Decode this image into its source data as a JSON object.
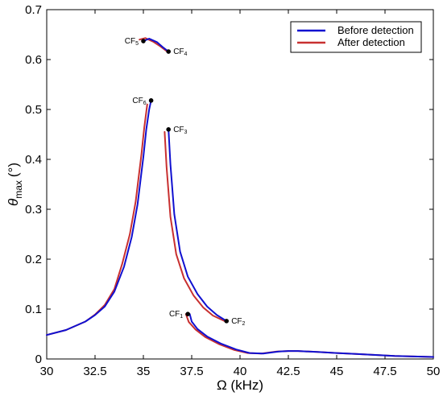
{
  "chart_data": {
    "type": "line",
    "xlabel": "Ω (kHz)",
    "ylabel": {
      "symbol": "θ",
      "subscript": "max",
      "unit": "(°)"
    },
    "xlim": [
      30,
      50
    ],
    "ylim": [
      0,
      0.7
    ],
    "x_ticks": [
      30,
      32.5,
      35,
      37.5,
      40,
      42.5,
      45,
      47.5,
      50
    ],
    "x_tick_labels": [
      "30",
      "32.5",
      "35",
      "37.5",
      "40",
      "42.5",
      "45",
      "47.5",
      "50"
    ],
    "y_ticks": [
      0,
      0.1,
      0.2,
      0.3,
      0.4,
      0.5,
      0.6,
      0.7
    ],
    "y_tick_labels": [
      "0",
      "0.1",
      "0.2",
      "0.3",
      "0.4",
      "0.5",
      "0.6",
      "0.7"
    ],
    "grid": false,
    "legend_position": "top-right",
    "series": [
      {
        "name": "Before detection",
        "color": "#1010d0",
        "branches": [
          {
            "x": [
              30.0,
              31.0,
              32.0,
              32.5,
              33.0,
              33.5,
              34.0,
              34.4,
              34.7,
              35.0,
              35.15,
              35.3,
              35.4
            ],
            "y": [
              0.048,
              0.058,
              0.075,
              0.088,
              0.105,
              0.135,
              0.185,
              0.245,
              0.31,
              0.405,
              0.46,
              0.5,
              0.518
            ]
          },
          {
            "x": [
              36.3,
              36.4,
              36.6,
              36.9,
              37.3,
              37.8,
              38.3,
              38.8,
              39.3
            ],
            "y": [
              0.46,
              0.39,
              0.29,
              0.215,
              0.165,
              0.13,
              0.105,
              0.088,
              0.076
            ]
          },
          {
            "x": [
              37.4,
              37.5,
              37.8,
              38.3,
              39.0,
              39.8,
              40.5,
              41.2,
              42.0,
              42.5,
              43.0,
              44.0,
              45.0,
              46.0,
              47.0,
              48.0,
              49.0,
              50.0
            ],
            "y": [
              0.09,
              0.075,
              0.06,
              0.045,
              0.031,
              0.019,
              0.012,
              0.011,
              0.015,
              0.016,
              0.016,
              0.014,
              0.012,
              0.01,
              0.008,
              0.006,
              0.005,
              0.004
            ]
          },
          {
            "x": [
              35.0,
              35.3,
              35.7,
              36.0,
              36.3
            ],
            "y": [
              0.637,
              0.642,
              0.635,
              0.625,
              0.616
            ]
          }
        ]
      },
      {
        "name": "After detection",
        "color": "#c83030",
        "branches": [
          {
            "x": [
              30.0,
              31.0,
              32.0,
              32.5,
              33.0,
              33.5,
              33.9,
              34.3,
              34.6,
              34.9,
              35.05,
              35.2
            ],
            "y": [
              0.048,
              0.058,
              0.075,
              0.089,
              0.108,
              0.14,
              0.19,
              0.25,
              0.315,
              0.41,
              0.465,
              0.51
            ]
          },
          {
            "x": [
              36.1,
              36.2,
              36.4,
              36.7,
              37.1,
              37.6,
              38.1,
              38.6,
              39.2
            ],
            "y": [
              0.455,
              0.385,
              0.285,
              0.21,
              0.162,
              0.127,
              0.103,
              0.087,
              0.076
            ]
          },
          {
            "x": [
              37.2,
              37.35,
              37.7,
              38.2,
              38.9,
              39.7,
              40.4,
              41.1,
              41.9,
              42.5,
              43.0,
              44.0,
              45.0,
              46.0,
              47.0,
              48.0,
              49.0,
              50.0
            ],
            "y": [
              0.09,
              0.074,
              0.059,
              0.044,
              0.03,
              0.018,
              0.012,
              0.011,
              0.015,
              0.016,
              0.016,
              0.014,
              0.012,
              0.01,
              0.008,
              0.006,
              0.005,
              0.004
            ]
          },
          {
            "x": [
              34.8,
              35.1,
              35.5,
              35.9,
              36.2
            ],
            "y": [
              0.64,
              0.643,
              0.636,
              0.626,
              0.617
            ]
          }
        ]
      }
    ],
    "annotations": [
      {
        "base": "CF",
        "sub": "1",
        "x": 37.3,
        "y": 0.09,
        "side": "left"
      },
      {
        "base": "CF",
        "sub": "2",
        "x": 39.3,
        "y": 0.076,
        "side": "right"
      },
      {
        "base": "CF",
        "sub": "3",
        "x": 36.3,
        "y": 0.46,
        "side": "right"
      },
      {
        "base": "CF",
        "sub": "4",
        "x": 36.3,
        "y": 0.616,
        "side": "right"
      },
      {
        "base": "CF",
        "sub": "5",
        "x": 35.0,
        "y": 0.637,
        "side": "left"
      },
      {
        "base": "CF",
        "sub": "6",
        "x": 35.4,
        "y": 0.518,
        "side": "left"
      }
    ]
  }
}
